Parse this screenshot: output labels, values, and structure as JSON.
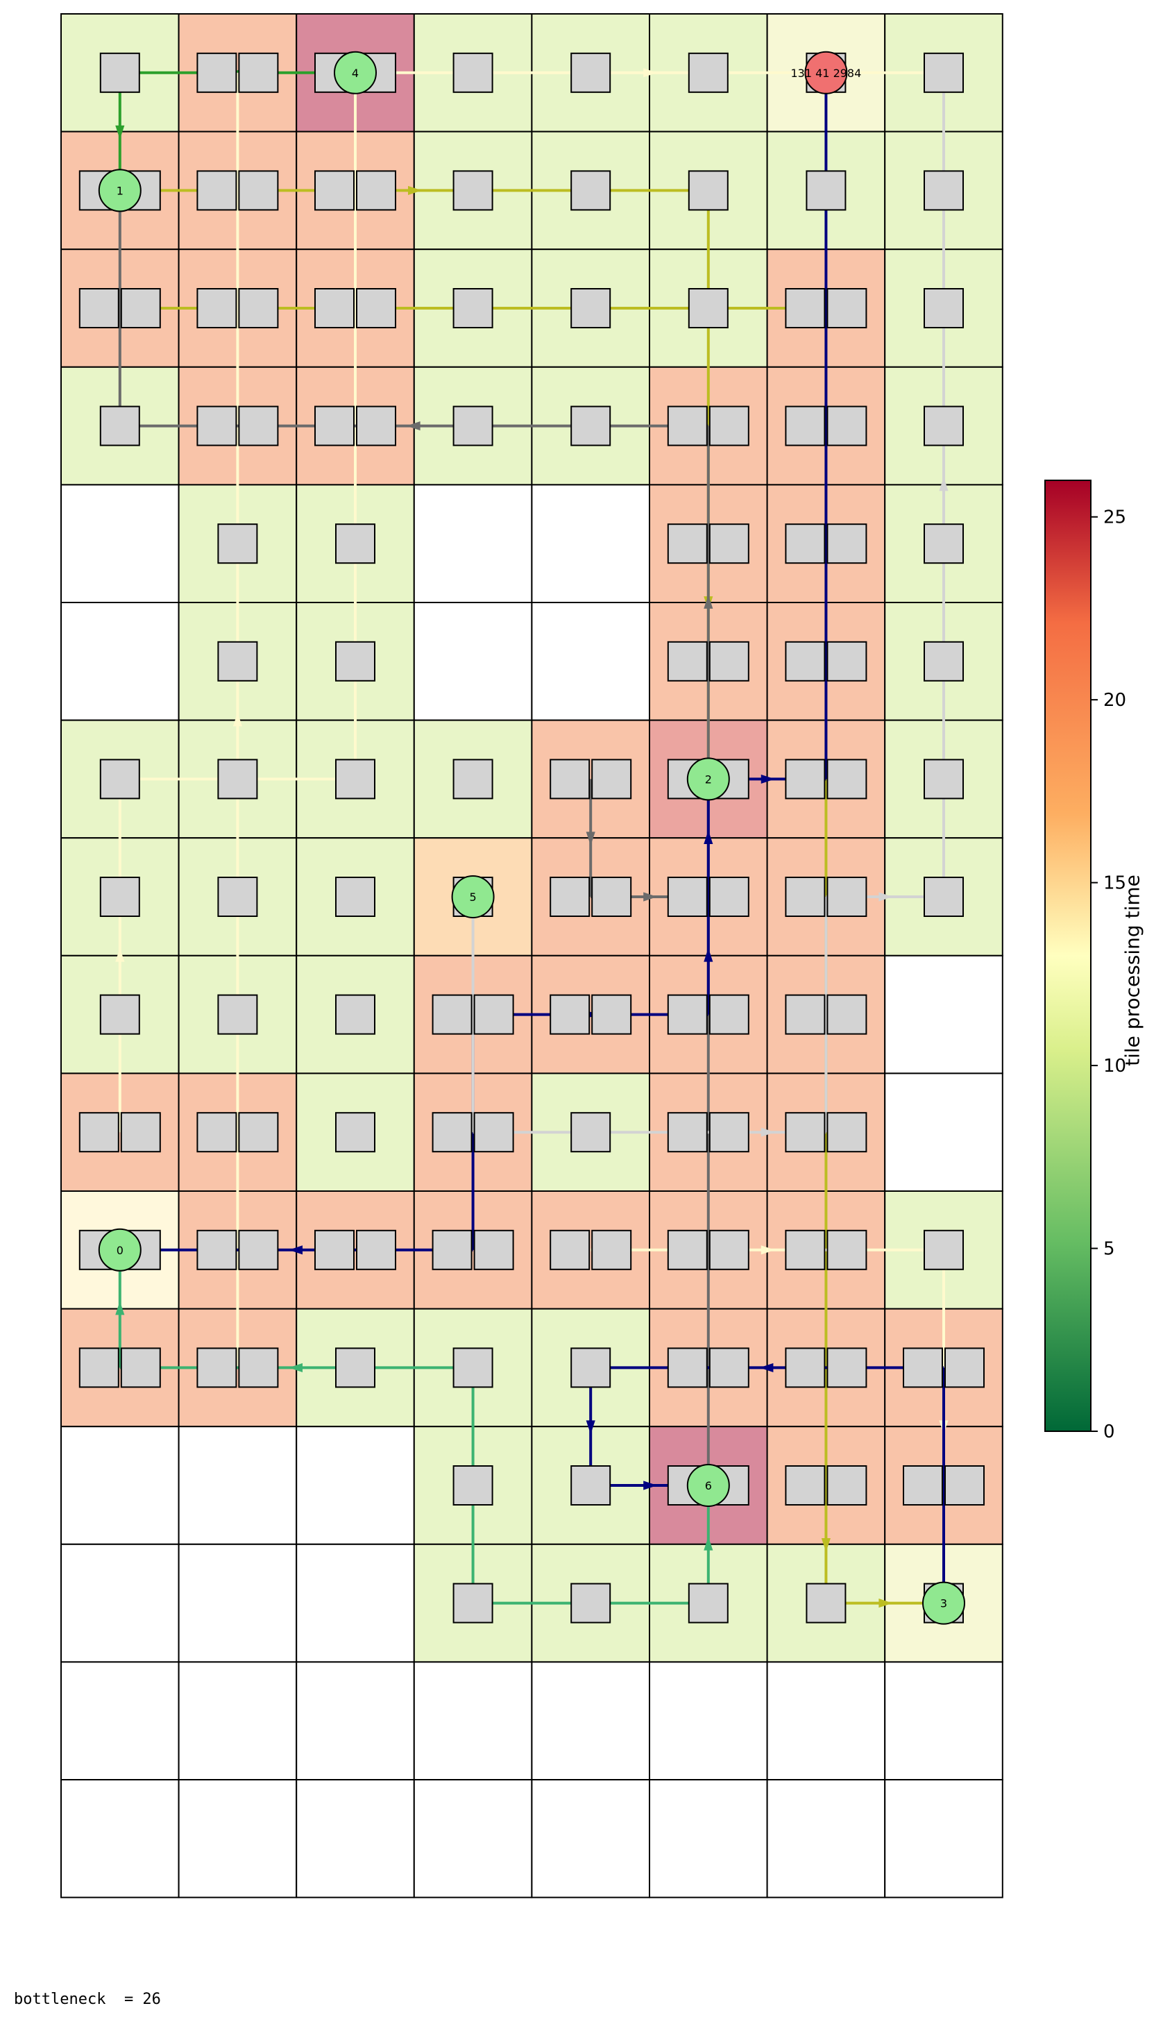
{
  "footer": {
    "bottleneck_text": "bottleneck  = 26"
  },
  "colorbar": {
    "label": "tile processing time",
    "ticks": [
      0,
      5,
      10,
      15,
      20,
      25
    ],
    "min": 0,
    "max": 26
  },
  "grid": {
    "cols": 8,
    "rows": 16,
    "legend_color": {
      "green": "#e8f5c8",
      "salmon": "#f9c4a9",
      "rose": "#d88a9c",
      "light_yellow": "#f7f8d5",
      "cream": "#fff8dc",
      "peach": "#fddcb5",
      "white": "#ffffff"
    },
    "tile_colors": [
      [
        "green",
        "salmon",
        "rose",
        "green",
        "green",
        "green",
        "light_yellow",
        "green"
      ],
      [
        "salmon",
        "salmon",
        "salmon",
        "green",
        "green",
        "green",
        "green",
        "green"
      ],
      [
        "salmon",
        "salmon",
        "salmon",
        "green",
        "green",
        "green",
        "salmon",
        "green"
      ],
      [
        "green",
        "salmon",
        "salmon",
        "green",
        "green",
        "salmon",
        "salmon",
        "green"
      ],
      [
        "white",
        "green",
        "green",
        "white",
        "white",
        "salmon",
        "salmon",
        "green"
      ],
      [
        "white",
        "green",
        "green",
        "white",
        "white",
        "salmon",
        "salmon",
        "green"
      ],
      [
        "green",
        "green",
        "green",
        "green",
        "salmon",
        "rose2",
        "salmon",
        "green"
      ],
      [
        "green",
        "green",
        "green",
        "peach",
        "salmon",
        "salmon",
        "salmon",
        "green"
      ],
      [
        "green",
        "green",
        "green",
        "salmon",
        "salmon",
        "salmon",
        "salmon",
        "white"
      ],
      [
        "salmon",
        "salmon",
        "green",
        "salmon",
        "green",
        "salmon",
        "salmon",
        "white"
      ],
      [
        "cream",
        "salmon",
        "salmon",
        "salmon",
        "salmon",
        "salmon",
        "salmon",
        "green"
      ],
      [
        "salmon",
        "salmon",
        "green",
        "green",
        "green",
        "salmon",
        "salmon",
        "salmon"
      ],
      [
        "white",
        "white",
        "white",
        "green",
        "green",
        "rose",
        "salmon",
        "salmon"
      ],
      [
        "white",
        "white",
        "white",
        "green",
        "green",
        "green",
        "green",
        "light_yellow"
      ],
      [
        "white",
        "white",
        "white",
        "white",
        "white",
        "white",
        "white",
        "white"
      ],
      [
        "white",
        "white",
        "white",
        "white",
        "white",
        "white",
        "white",
        "white"
      ]
    ]
  },
  "nodes": [
    {
      "label": "4",
      "col": 2,
      "row": 0,
      "fill": "#90e890"
    },
    {
      "label": "131 41 2984",
      "col": 6,
      "row": 0,
      "fill": "#f07070"
    },
    {
      "label": "1",
      "col": 0,
      "row": 1,
      "fill": "#90e890"
    },
    {
      "label": "2",
      "col": 5,
      "row": 6,
      "fill": "#90e890"
    },
    {
      "label": "5",
      "col": 3,
      "row": 7,
      "fill": "#90e890"
    },
    {
      "label": "0",
      "col": 0,
      "row": 10,
      "fill": "#90e890"
    },
    {
      "label": "6",
      "col": 5,
      "row": 12,
      "fill": "#90e890"
    },
    {
      "label": "3",
      "col": 7,
      "row": 13,
      "fill": "#90e890"
    }
  ],
  "route_colors": [
    "#2ca02c",
    "#bcbd22",
    "#fffacd",
    "#6b6b6b",
    "#000080",
    "#d3d3d3",
    "#3cb371"
  ]
}
